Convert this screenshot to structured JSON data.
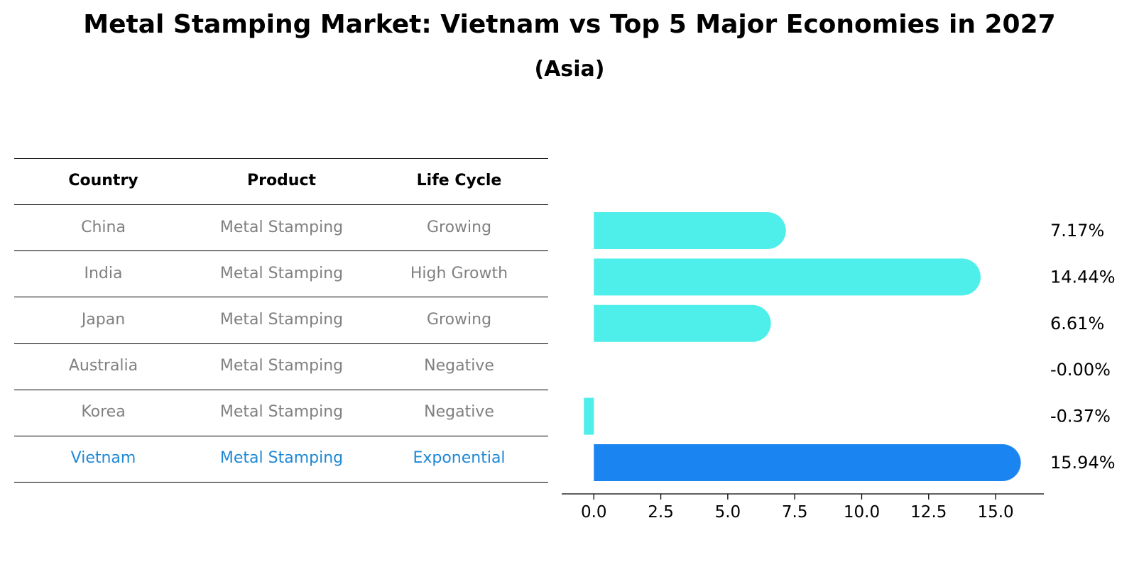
{
  "title": "Metal Stamping Market: Vietnam vs Top 5 Major Economies in 2027",
  "subtitle": "(Asia)",
  "table": {
    "headers": [
      "Country",
      "Product",
      "Life Cycle"
    ],
    "rows": [
      [
        "China",
        "Metal Stamping",
        "Growing"
      ],
      [
        "India",
        "Metal Stamping",
        "High Growth"
      ],
      [
        "Japan",
        "Metal Stamping",
        "Growing"
      ],
      [
        "Australia",
        "Metal Stamping",
        "Negative"
      ],
      [
        "Korea",
        "Metal Stamping",
        "Negative"
      ],
      [
        "Vietnam",
        "Metal Stamping",
        "Exponential"
      ]
    ],
    "highlight_row": 5,
    "colors": {
      "header": "#000000",
      "body": "#808080",
      "highlight": "#1f88d5"
    }
  },
  "chart_data": {
    "type": "bar",
    "orientation": "horizontal",
    "categories": [
      "China",
      "India",
      "Japan",
      "Australia",
      "Korea",
      "Vietnam"
    ],
    "values": [
      7.17,
      14.44,
      6.61,
      -0.0,
      -0.37,
      15.94
    ],
    "value_labels": [
      "7.17%",
      "14.44%",
      "6.61%",
      "-0.00%",
      "-0.37%",
      "15.94%"
    ],
    "xlim": [
      -1.2,
      16.8
    ],
    "xticks": [
      0.0,
      2.5,
      5.0,
      7.5,
      10.0,
      12.5,
      15.0
    ],
    "xtick_labels": [
      "0.0",
      "2.5",
      "5.0",
      "7.5",
      "10.0",
      "12.5",
      "15.0"
    ],
    "grid": false,
    "colors": {
      "bar": "#4eeeea",
      "highlight": "#1a85f0",
      "label": "#000000"
    },
    "highlight_index": 5
  }
}
